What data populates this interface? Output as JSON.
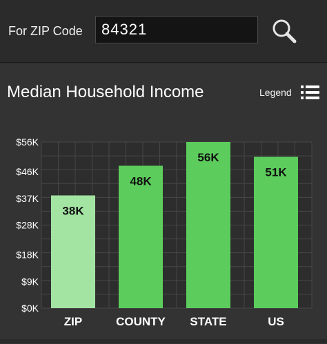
{
  "search": {
    "label": "For ZIP Code",
    "value": "84321"
  },
  "header": {
    "legend_label": "Legend"
  },
  "chart_data": {
    "type": "bar",
    "title": "Median Household Income",
    "categories": [
      "ZIP",
      "COUNTY",
      "STATE",
      "US"
    ],
    "values": [
      38,
      48,
      56,
      51
    ],
    "data_labels": [
      "38K",
      "48K",
      "56K",
      "51K"
    ],
    "unit": "K",
    "yticks": [
      0,
      9,
      18,
      28,
      37,
      46,
      56
    ],
    "ytick_labels": [
      "$0K",
      "$9K",
      "$18K",
      "$28K",
      "$37K",
      "$46K",
      "$56K"
    ],
    "ylim": [
      0,
      56
    ],
    "grid": true,
    "colors": {
      "highlight": "#a3e4a3",
      "bar": "#5ccd5c",
      "grid": "#474747",
      "plot_bg": "#2d2d2d"
    }
  }
}
